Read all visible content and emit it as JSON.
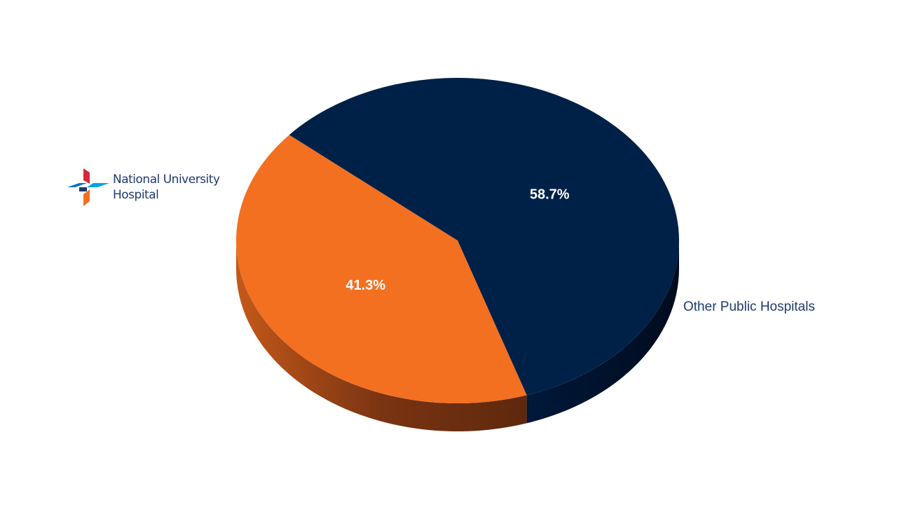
{
  "chart_data": {
    "type": "pie",
    "categories": [
      "National University Hospital",
      "Other Public Hospitals"
    ],
    "values": [
      41.3,
      58.7
    ],
    "value_labels": [
      "41.3%",
      "58.7%"
    ],
    "colors": [
      "#f37021",
      "#002147"
    ]
  }
}
